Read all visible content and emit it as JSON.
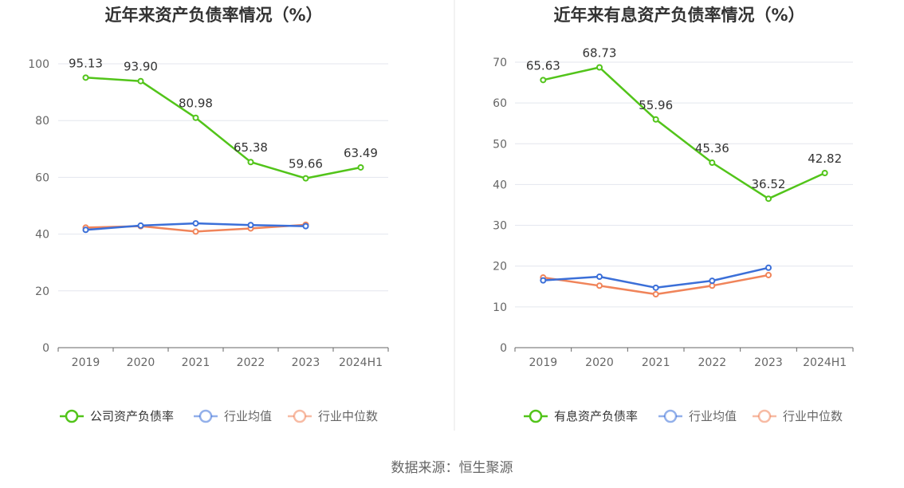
{
  "source_text": "数据来源：恒生聚源",
  "colors": {
    "company": "#52c41a",
    "industry_avg": "#3b6fd8",
    "industry_median": "#f0845a",
    "axis_text": "#666666",
    "grid": "#e3e6ee",
    "axis_line": "#666666",
    "title": "#333333",
    "divider": "#e6e6e6"
  },
  "chart_data": [
    {
      "type": "line",
      "title": "近年来资产负债率情况（%）",
      "categories": [
        "2019",
        "2020",
        "2021",
        "2022",
        "2023",
        "2024H1"
      ],
      "ylim": [
        0,
        100
      ],
      "yticks": [
        0,
        20,
        40,
        60,
        80,
        100
      ],
      "grid": true,
      "legend_position": "bottom",
      "series": [
        {
          "name": "公司资产负债率",
          "color_key": "company",
          "values": [
            95.13,
            93.9,
            80.98,
            65.38,
            59.66,
            63.49
          ],
          "labels": [
            "95.13",
            "93.90",
            "80.98",
            "65.38",
            "59.66",
            "63.49"
          ]
        },
        {
          "name": "行业均值",
          "color_key": "industry_avg",
          "values": [
            41.5,
            43.0,
            43.8,
            43.2,
            42.8,
            null
          ]
        },
        {
          "name": "行业中位数",
          "color_key": "industry_median",
          "values": [
            42.3,
            42.8,
            40.9,
            42.0,
            43.3,
            null
          ]
        }
      ]
    },
    {
      "type": "line",
      "title": "近年来有息资产负债率情况（%）",
      "categories": [
        "2019",
        "2020",
        "2021",
        "2022",
        "2023",
        "2024H1"
      ],
      "ylim": [
        0,
        70
      ],
      "yticks": [
        0,
        10,
        20,
        30,
        40,
        50,
        60,
        70
      ],
      "grid": true,
      "legend_position": "bottom",
      "series": [
        {
          "name": "有息资产负债率",
          "color_key": "company",
          "values": [
            65.63,
            68.73,
            55.96,
            45.36,
            36.52,
            42.82
          ],
          "labels": [
            "65.63",
            "68.73",
            "55.96",
            "45.36",
            "36.52",
            "42.82"
          ]
        },
        {
          "name": "行业均值",
          "color_key": "industry_avg",
          "values": [
            16.5,
            17.4,
            14.7,
            16.4,
            19.6,
            null
          ]
        },
        {
          "name": "行业中位数",
          "color_key": "industry_median",
          "values": [
            17.2,
            15.2,
            13.1,
            15.2,
            17.8,
            null
          ]
        }
      ]
    }
  ]
}
